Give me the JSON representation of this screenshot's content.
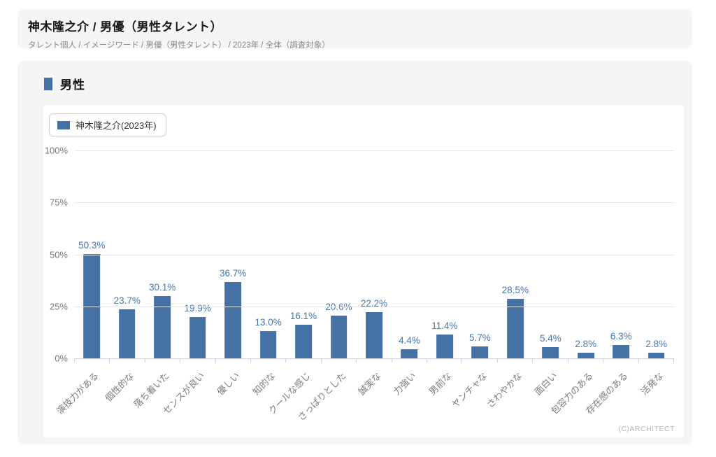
{
  "header": {
    "title": "神木隆之介 / 男優（男性タレント）",
    "breadcrumb": "タレント個人 / イメージワード / 男優（男性タレント） / 2023年 / 全体（調査対象）"
  },
  "section": {
    "title": "男性"
  },
  "chart_data": {
    "type": "bar",
    "legend": "神木隆之介(2023年)",
    "legend_position": "top-left",
    "categories": [
      "演技力がある",
      "個性的な",
      "落ち着いた",
      "センスが良い",
      "優しい",
      "知的な",
      "クールな感じ",
      "さっぱりとした",
      "誠実な",
      "力強い",
      "男前な",
      "ヤンチャな",
      "さわやかな",
      "面白い",
      "包容力のある",
      "存在感のある",
      "活発な"
    ],
    "values": [
      50.3,
      23.7,
      30.1,
      19.9,
      36.7,
      13.0,
      16.1,
      20.6,
      22.2,
      4.4,
      11.4,
      5.7,
      28.5,
      5.4,
      2.8,
      6.3,
      2.8
    ],
    "value_labels": [
      "50.3%",
      "23.7%",
      "30.1%",
      "19.9%",
      "36.7%",
      "13.0%",
      "16.1%",
      "20.6%",
      "22.2%",
      "4.4%",
      "11.4%",
      "5.7%",
      "28.5%",
      "5.4%",
      "2.8%",
      "6.3%",
      "2.8%"
    ],
    "ylim": [
      0,
      100
    ],
    "yticks": [
      0,
      25,
      50,
      75,
      100
    ],
    "ytick_labels": [
      "0%",
      "25%",
      "50%",
      "75%",
      "100%"
    ],
    "grid": true,
    "bar_color": "#4572a4",
    "value_label_color": "#4677b0"
  },
  "footer": {
    "copyright": "(C)ARCHITECT"
  }
}
